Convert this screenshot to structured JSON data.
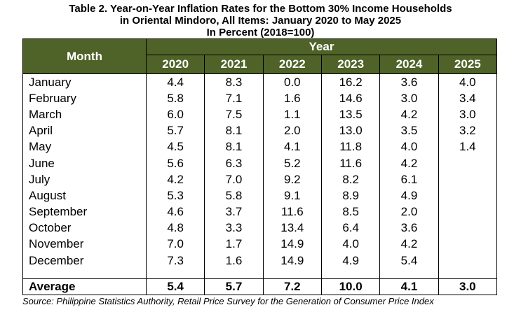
{
  "title": {
    "line1": "Table 2. Year-on-Year Inflation Rates for the Bottom 30% Income Households",
    "line2": "in Oriental Mindoro, All Items: January 2020 to May 2025",
    "line3": "In Percent (2018=100)"
  },
  "table": {
    "month_header": "Month",
    "year_header": "Year",
    "years": [
      "2020",
      "2021",
      "2022",
      "2023",
      "2024",
      "2025"
    ],
    "rows": [
      {
        "month": "January",
        "values": [
          "4.4",
          "8.3",
          "0.0",
          "16.2",
          "3.6",
          "4.0"
        ]
      },
      {
        "month": "February",
        "values": [
          "5.8",
          "7.1",
          "1.6",
          "14.6",
          "3.0",
          "3.4"
        ]
      },
      {
        "month": "March",
        "values": [
          "6.0",
          "7.5",
          "1.1",
          "13.5",
          "4.2",
          "3.0"
        ]
      },
      {
        "month": "April",
        "values": [
          "5.7",
          "8.1",
          "2.0",
          "13.0",
          "3.5",
          "3.2"
        ]
      },
      {
        "month": "May",
        "values": [
          "4.5",
          "8.1",
          "4.1",
          "11.8",
          "4.0",
          "1.4"
        ]
      },
      {
        "month": "June",
        "values": [
          "5.6",
          "6.3",
          "5.2",
          "11.6",
          "4.2",
          ""
        ]
      },
      {
        "month": "July",
        "values": [
          "4.2",
          "7.0",
          "9.2",
          "8.2",
          "6.1",
          ""
        ]
      },
      {
        "month": "August",
        "values": [
          "5.3",
          "5.8",
          "9.1",
          "8.9",
          "4.9",
          ""
        ]
      },
      {
        "month": "September",
        "values": [
          "4.6",
          "3.7",
          "11.6",
          "8.5",
          "2.0",
          ""
        ]
      },
      {
        "month": "October",
        "values": [
          "4.8",
          "3.3",
          "13.4",
          "6.4",
          "3.6",
          ""
        ]
      },
      {
        "month": "November",
        "values": [
          "7.0",
          "1.7",
          "14.9",
          "4.0",
          "4.2",
          ""
        ]
      },
      {
        "month": "December",
        "values": [
          "7.3",
          "1.6",
          "14.9",
          "4.9",
          "5.4",
          ""
        ]
      }
    ],
    "average": {
      "label": "Average",
      "values": [
        "5.4",
        "5.7",
        "7.2",
        "10.0",
        "4.1",
        "3.0"
      ]
    }
  },
  "source": "Source: Philippine Statistics Authority, Retail Price Survey for the Generation of Consumer Price Index",
  "colors": {
    "header_bg": "#4f6228",
    "header_text": "#ffffff"
  }
}
